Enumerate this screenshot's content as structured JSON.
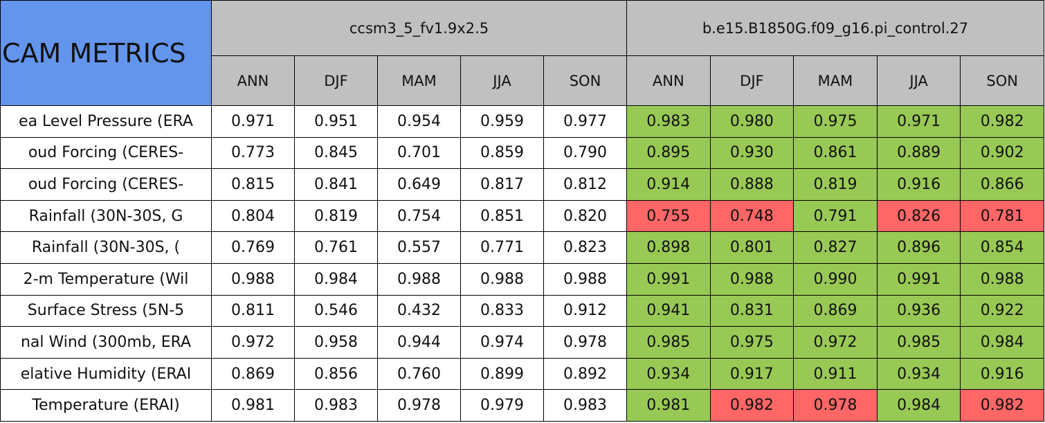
{
  "table": {
    "title": "CAM METRICS",
    "groups": [
      {
        "name": "ccsm3_5_fv1.9x2.5",
        "columns": [
          "ANN",
          "DJF",
          "MAM",
          "JJA",
          "SON"
        ]
      },
      {
        "name": "b.e15.B1850G.f09_g16.pi_control.27",
        "columns": [
          "ANN",
          "DJF",
          "MAM",
          "JJA",
          "SON"
        ]
      }
    ],
    "rows": [
      {
        "label": "ea Level Pressure (ERA",
        "cells": [
          "0.971",
          "0.951",
          "0.954",
          "0.959",
          "0.977",
          "0.983",
          "0.980",
          "0.975",
          "0.971",
          "0.982"
        ],
        "colors": [
          "#ffffff",
          "#ffffff",
          "#ffffff",
          "#ffffff",
          "#ffffff",
          "#99c955",
          "#99c955",
          "#99c955",
          "#99c955",
          "#99c955"
        ]
      },
      {
        "label": "oud Forcing (CERES-",
        "cells": [
          "0.773",
          "0.845",
          "0.701",
          "0.859",
          "0.790",
          "0.895",
          "0.930",
          "0.861",
          "0.889",
          "0.902"
        ],
        "colors": [
          "#ffffff",
          "#ffffff",
          "#ffffff",
          "#ffffff",
          "#ffffff",
          "#99c955",
          "#99c955",
          "#99c955",
          "#99c955",
          "#99c955"
        ]
      },
      {
        "label": "oud Forcing (CERES-",
        "cells": [
          "0.815",
          "0.841",
          "0.649",
          "0.817",
          "0.812",
          "0.914",
          "0.888",
          "0.819",
          "0.916",
          "0.866"
        ],
        "colors": [
          "#ffffff",
          "#ffffff",
          "#ffffff",
          "#ffffff",
          "#ffffff",
          "#99c955",
          "#99c955",
          "#99c955",
          "#99c955",
          "#99c955"
        ]
      },
      {
        "label": "Rainfall (30N-30S, G",
        "cells": [
          "0.804",
          "0.819",
          "0.754",
          "0.851",
          "0.820",
          "0.755",
          "0.748",
          "0.791",
          "0.826",
          "0.781"
        ],
        "colors": [
          "#ffffff",
          "#ffffff",
          "#ffffff",
          "#ffffff",
          "#ffffff",
          "#ff6666",
          "#ff6666",
          "#99c955",
          "#ff6666",
          "#ff6666"
        ]
      },
      {
        "label": "Rainfall (30N-30S, (",
        "cells": [
          "0.769",
          "0.761",
          "0.557",
          "0.771",
          "0.823",
          "0.898",
          "0.801",
          "0.827",
          "0.896",
          "0.854"
        ],
        "colors": [
          "#ffffff",
          "#ffffff",
          "#ffffff",
          "#ffffff",
          "#ffffff",
          "#99c955",
          "#99c955",
          "#99c955",
          "#99c955",
          "#99c955"
        ]
      },
      {
        "label": "2-m Temperature (Wil",
        "cells": [
          "0.988",
          "0.984",
          "0.988",
          "0.988",
          "0.988",
          "0.991",
          "0.988",
          "0.990",
          "0.991",
          "0.988"
        ],
        "colors": [
          "#ffffff",
          "#ffffff",
          "#ffffff",
          "#ffffff",
          "#ffffff",
          "#99c955",
          "#99c955",
          "#99c955",
          "#99c955",
          "#99c955"
        ]
      },
      {
        "label": "Surface Stress (5N-5",
        "cells": [
          "0.811",
          "0.546",
          "0.432",
          "0.833",
          "0.912",
          "0.941",
          "0.831",
          "0.869",
          "0.936",
          "0.922"
        ],
        "colors": [
          "#ffffff",
          "#ffffff",
          "#ffffff",
          "#ffffff",
          "#ffffff",
          "#99c955",
          "#99c955",
          "#99c955",
          "#99c955",
          "#99c955"
        ]
      },
      {
        "label": "nal Wind (300mb, ERA",
        "cells": [
          "0.972",
          "0.958",
          "0.944",
          "0.974",
          "0.978",
          "0.985",
          "0.975",
          "0.972",
          "0.985",
          "0.984"
        ],
        "colors": [
          "#ffffff",
          "#ffffff",
          "#ffffff",
          "#ffffff",
          "#ffffff",
          "#99c955",
          "#99c955",
          "#99c955",
          "#99c955",
          "#99c955"
        ]
      },
      {
        "label": "elative Humidity (ERAI",
        "cells": [
          "0.869",
          "0.856",
          "0.760",
          "0.899",
          "0.892",
          "0.934",
          "0.917",
          "0.911",
          "0.934",
          "0.916"
        ],
        "colors": [
          "#ffffff",
          "#ffffff",
          "#ffffff",
          "#ffffff",
          "#ffffff",
          "#99c955",
          "#99c955",
          "#99c955",
          "#99c955",
          "#99c955"
        ]
      },
      {
        "label": "Temperature (ERAI)",
        "cells": [
          "0.981",
          "0.983",
          "0.978",
          "0.979",
          "0.983",
          "0.981",
          "0.982",
          "0.978",
          "0.984",
          "0.982"
        ],
        "colors": [
          "#ffffff",
          "#ffffff",
          "#ffffff",
          "#ffffff",
          "#ffffff",
          "#99c955",
          "#ff6666",
          "#ff6666",
          "#99c955",
          "#ff6666"
        ]
      }
    ]
  }
}
